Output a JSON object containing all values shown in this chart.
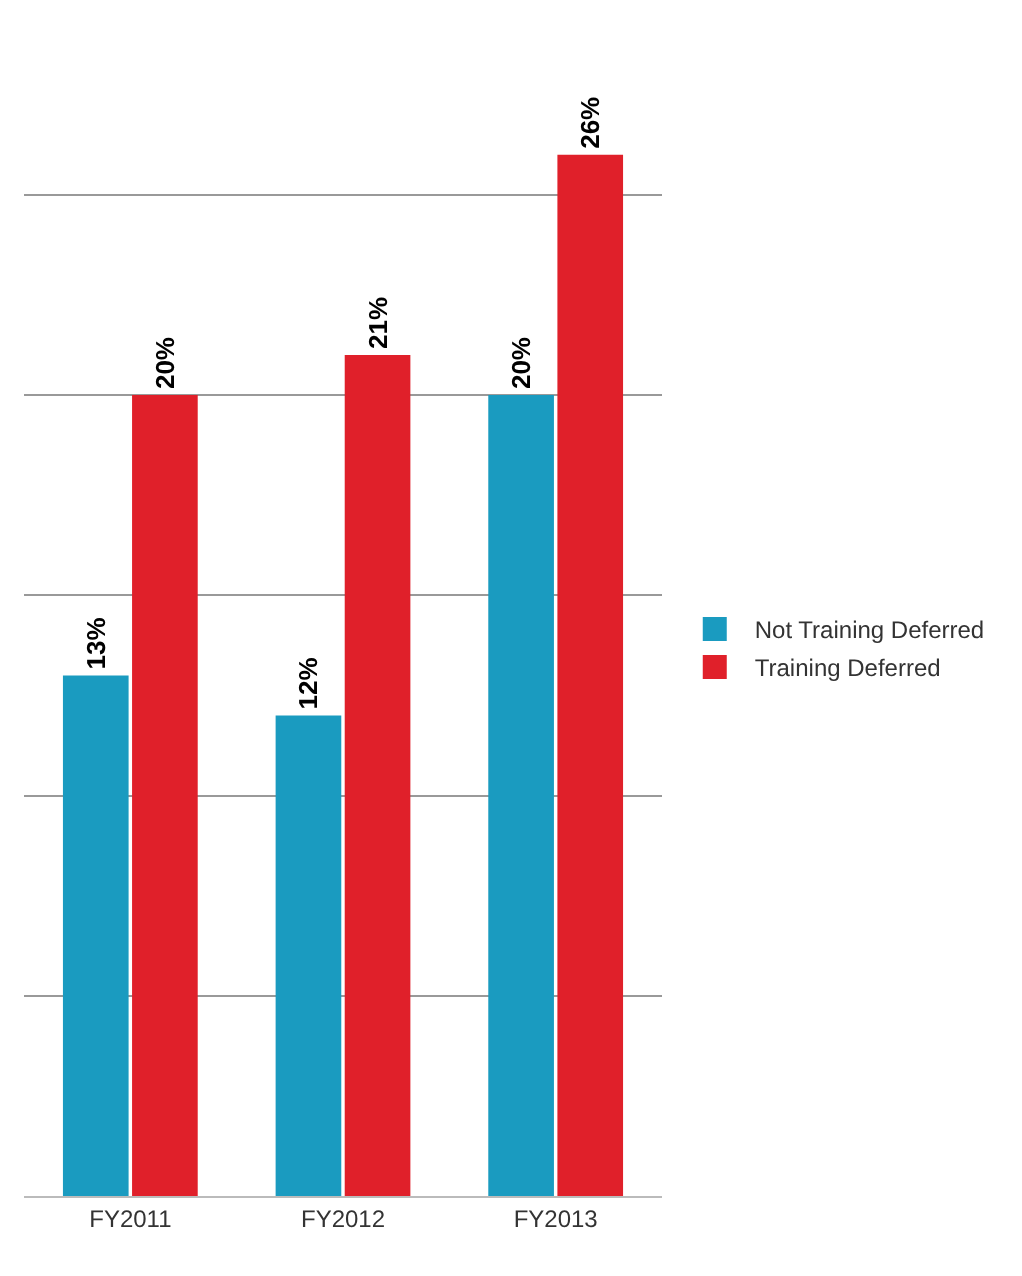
{
  "chart_data": {
    "type": "bar",
    "categories": [
      "FY2011",
      "FY2012",
      "FY2013"
    ],
    "series": [
      {
        "name": "Not Training Deferred",
        "color": "#1a9bc0",
        "values": [
          13,
          12,
          20
        ],
        "value_labels": [
          "13%",
          "12%",
          "20%"
        ]
      },
      {
        "name": "Training Deferred",
        "color": "#e0202a",
        "values": [
          20,
          21,
          26
        ],
        "value_labels": [
          "20%",
          "21%",
          "26%"
        ]
      }
    ],
    "yticks": [
      {
        "value": 0,
        "label": null
      },
      {
        "value": 5,
        "label": null
      },
      {
        "value": 10,
        "label": null
      },
      {
        "value": 15,
        "label": null
      },
      {
        "value": 20,
        "label": null
      },
      {
        "value": 25,
        "label": null
      }
    ],
    "grid": "y",
    "legend": "right",
    "tick_labels": "x"
  }
}
